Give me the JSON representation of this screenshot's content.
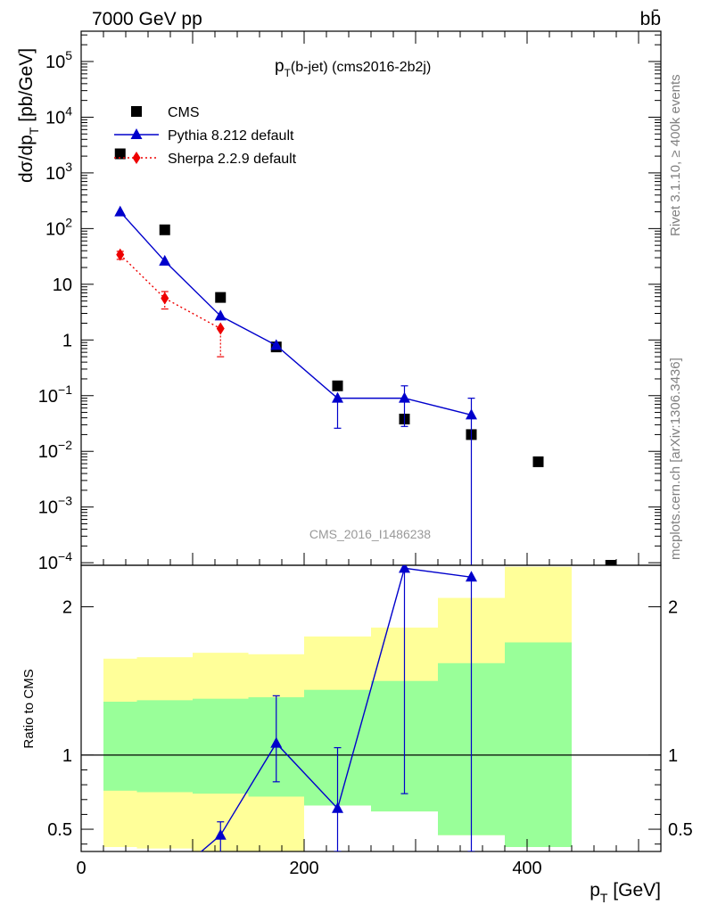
{
  "header": {
    "left": "7000 GeV pp",
    "right": "bb̄"
  },
  "side_labels": {
    "rivet": "Rivet 3.1.10, ≥ 400k events",
    "source": "mcplots.cern.ch [arXiv:1306.3436]"
  },
  "chart_data": [
    {
      "type": "scatter",
      "title": "p_T(b-jet) (cms2016-2b2j)",
      "title_parts": {
        "p": "p",
        "sub": "T",
        "rest": "(b-jet) (cms2016-2b2j)"
      },
      "ylabel": "dσ/dp_T [pb/GeV]",
      "ylabel_parts": {
        "main": "dσ/dp",
        "sub": "T",
        "rest": " [pb/GeV]"
      },
      "yscale": "log",
      "xlim": [
        0,
        520
      ],
      "ylim": [
        9e-05,
        350000
      ],
      "y_ticks": [
        {
          "value": 100000,
          "base": "10",
          "exp": "5",
          "text": ""
        },
        {
          "value": 10000,
          "base": "10",
          "exp": "4",
          "text": ""
        },
        {
          "value": 1000,
          "base": "10",
          "exp": "3",
          "text": ""
        },
        {
          "value": 100,
          "base": "10",
          "exp": "2",
          "text": ""
        },
        {
          "value": 10,
          "base": "",
          "exp": "",
          "text": "10"
        },
        {
          "value": 1,
          "base": "",
          "exp": "",
          "text": "1"
        },
        {
          "value": 0.1,
          "base": "10",
          "exp": "−1",
          "text": ""
        },
        {
          "value": 0.01,
          "base": "10",
          "exp": "−2",
          "text": ""
        },
        {
          "value": 0.001,
          "base": "10",
          "exp": "−3",
          "text": ""
        },
        {
          "value": 0.0001,
          "base": "10",
          "exp": "−4",
          "text": ""
        }
      ],
      "watermark": "CMS_2016_I1486238",
      "legend_position": "top-left",
      "series": [
        {
          "name": "CMS",
          "marker": "square",
          "color": "#000000",
          "x": [
            35,
            75,
            125,
            175,
            230,
            290,
            350,
            410,
            475
          ],
          "y": [
            2200,
            95,
            5.8,
            0.75,
            0.15,
            0.038,
            0.02,
            0.0065,
            9e-05
          ]
        },
        {
          "name": "Pythia 8.212 default",
          "marker": "triangle",
          "color": "#0000cc",
          "line": "solid",
          "x": [
            35,
            75,
            125,
            175,
            230,
            290,
            350
          ],
          "y": [
            200,
            26,
            2.7,
            0.8,
            0.09,
            0.09,
            0.045
          ],
          "err_low": [
            0,
            0,
            0,
            0,
            0.064,
            0.062,
            0.045
          ],
          "err_high": [
            0,
            0,
            0,
            0,
            0,
            0.06,
            0.045
          ]
        },
        {
          "name": "Sherpa 2.2.9 default",
          "marker": "diamond",
          "color": "#ee0000",
          "line": "dotted",
          "x": [
            35,
            75,
            125
          ],
          "y": [
            34,
            5.6,
            1.6
          ],
          "err_low": [
            6,
            2.0,
            1.1
          ],
          "err_high": [
            5,
            1.8,
            0
          ]
        }
      ]
    },
    {
      "type": "line",
      "ylabel": "Ratio to CMS",
      "xlabel": "p_T [GeV]",
      "xlabel_parts": {
        "p": "p",
        "sub": "T",
        "rest": " [GeV]"
      },
      "xlim": [
        0,
        520
      ],
      "ylim": [
        0.35,
        2.28
      ],
      "x_ticks": [
        0,
        200,
        400
      ],
      "y_ticks": [
        0.5,
        1,
        2
      ],
      "y_tick_labels": [
        "0.5",
        "1",
        "2"
      ],
      "reference_line": 1,
      "bands": {
        "edges": [
          20,
          50,
          100,
          150,
          200,
          260,
          320,
          380,
          440
        ],
        "yellow_low": [
          0.38,
          0.37,
          0.32,
          0.3,
          0.66,
          0.62,
          0.46,
          0.38
        ],
        "yellow_high": [
          1.65,
          1.66,
          1.69,
          1.68,
          1.8,
          1.86,
          2.06,
          2.27
        ],
        "green_low": [
          0.76,
          0.75,
          0.74,
          0.72,
          0.66,
          0.62,
          0.46,
          0.38
        ],
        "green_high": [
          1.36,
          1.37,
          1.38,
          1.39,
          1.44,
          1.5,
          1.62,
          1.76
        ],
        "yellow_color": "#ffff99",
        "green_color": "#99ff99"
      },
      "series": [
        {
          "name": "Pythia 8.212 default",
          "color": "#0000cc",
          "x": [
            100,
            125,
            175,
            230,
            290,
            350
          ],
          "y": [
            0.3,
            0.46,
            1.08,
            0.64,
            2.26,
            2.2
          ],
          "err_low": [
            0,
            0.16,
            0.26,
            0.29,
            1.52,
            1.85
          ],
          "err_high": [
            0,
            0.09,
            0.32,
            0.41,
            0,
            0
          ]
        }
      ]
    }
  ]
}
